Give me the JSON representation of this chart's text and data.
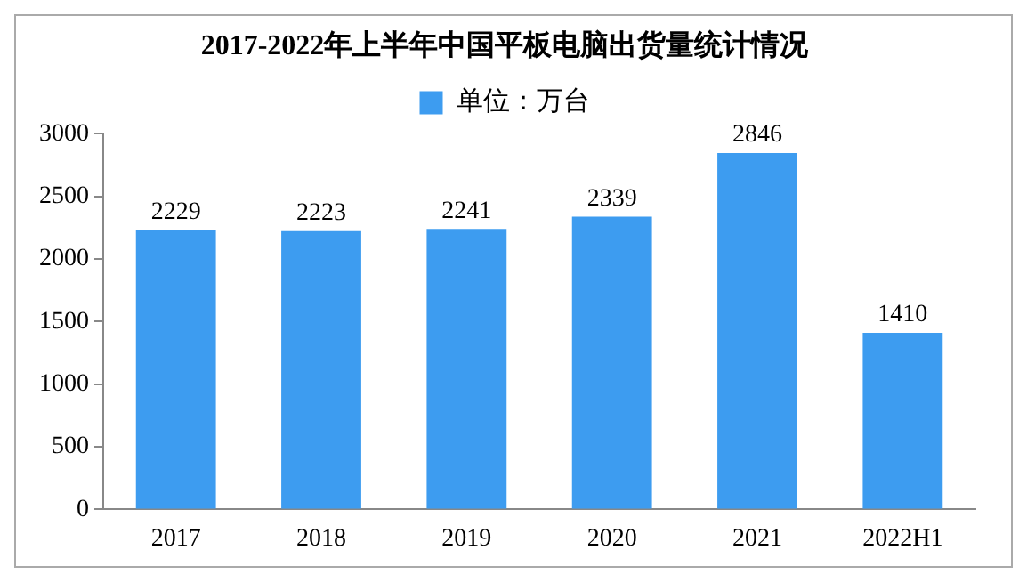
{
  "chart_data": {
    "type": "bar",
    "title": "2017-2022年上半年中国平板电脑出货量统计情况",
    "categories": [
      "2017",
      "2018",
      "2019",
      "2020",
      "2021",
      "2022H1"
    ],
    "series": [
      {
        "name": "单位：万台",
        "color": "#3d9cf0",
        "values": [
          2229,
          2223,
          2241,
          2339,
          2846,
          1410
        ]
      }
    ],
    "ylim": [
      0,
      3000
    ],
    "yticks": [
      0,
      500,
      1000,
      1500,
      2000,
      2500,
      3000
    ],
    "grid": false,
    "legend": "top",
    "data_labels": true
  }
}
